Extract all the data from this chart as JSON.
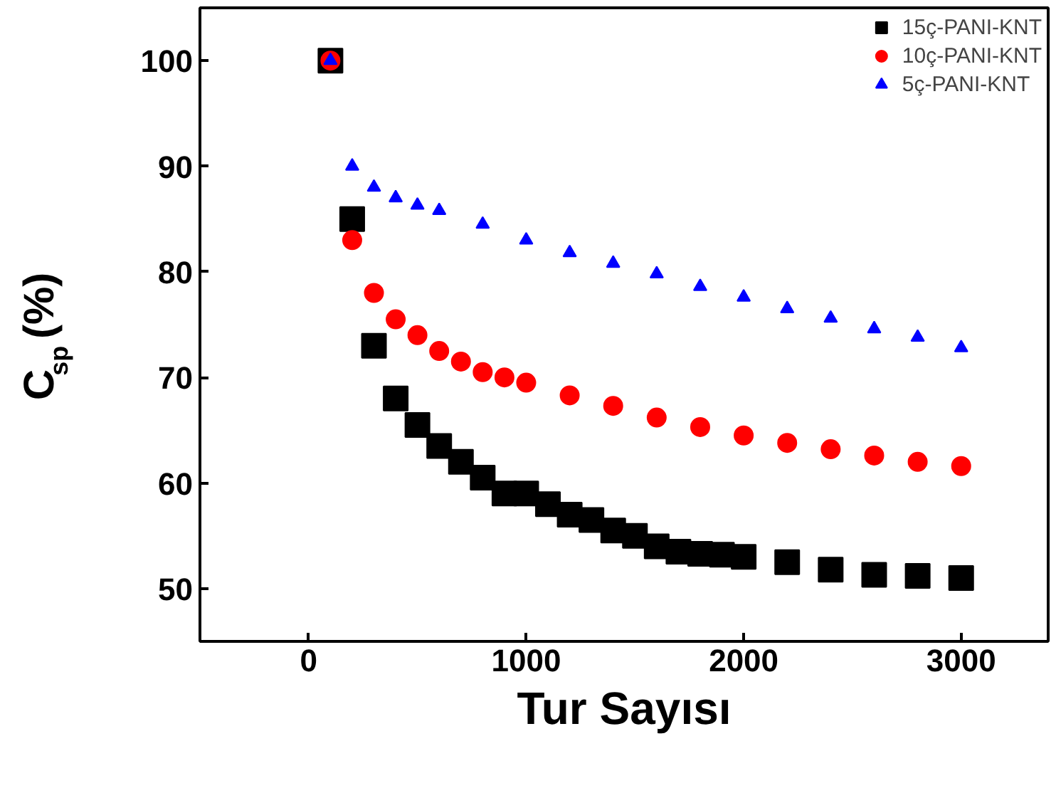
{
  "chart_data": {
    "type": "scatter",
    "xlabel": "Tur Sayısı",
    "ylabel": "C$_{sp}$ (%)",
    "xlim": [
      -500,
      3400
    ],
    "ylim": [
      45,
      105
    ],
    "xticks": [
      0,
      1000,
      2000,
      3000
    ],
    "yticks": [
      50,
      60,
      70,
      80,
      90,
      100
    ],
    "legend": "top right",
    "grid": false,
    "series": [
      {
        "name": "15ç-PANI-KNT",
        "color": "#000000",
        "marker": "square",
        "x": [
          100,
          200,
          300,
          400,
          500,
          600,
          700,
          800,
          900,
          1000,
          1100,
          1200,
          1300,
          1400,
          1500,
          1600,
          1700,
          1800,
          1900,
          2000,
          2200,
          2400,
          2600,
          2800,
          3000
        ],
        "values": [
          100,
          85,
          73,
          68,
          65.5,
          63.5,
          62,
          60.5,
          59,
          59,
          58,
          57,
          56.5,
          55.5,
          55,
          54,
          53.5,
          53.3,
          53.2,
          53,
          52.5,
          51.8,
          51.3,
          51.2,
          51
        ]
      },
      {
        "name": "10ç-PANI-KNT",
        "color": "#ff0000",
        "marker": "circle",
        "x": [
          100,
          200,
          300,
          400,
          500,
          600,
          700,
          800,
          900,
          1000,
          1200,
          1400,
          1600,
          1800,
          2000,
          2200,
          2400,
          2600,
          2800,
          3000
        ],
        "values": [
          100,
          83,
          78,
          75.5,
          74,
          72.5,
          71.5,
          70.5,
          70,
          69.5,
          68.3,
          67.3,
          66.2,
          65.3,
          64.5,
          63.8,
          63.2,
          62.6,
          62,
          61.6
        ]
      },
      {
        "name": "5ç-PANI-KNT",
        "color": "#0000ff",
        "marker": "triangle",
        "x": [
          100,
          200,
          300,
          400,
          500,
          600,
          800,
          1000,
          1200,
          1400,
          1600,
          1800,
          2000,
          2200,
          2400,
          2600,
          2800,
          3000
        ],
        "values": [
          100,
          90,
          88,
          87,
          86.3,
          85.8,
          84.5,
          83,
          81.8,
          80.8,
          79.8,
          78.6,
          77.6,
          76.5,
          75.6,
          74.6,
          73.8,
          72.8
        ]
      }
    ]
  }
}
